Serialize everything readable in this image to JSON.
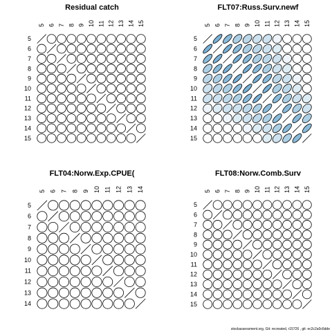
{
  "chart_data": [
    {
      "type": "corrplot",
      "title": "Residual catch",
      "color": "#5b9ec9",
      "categories": [
        "5",
        "6",
        "7",
        "8",
        "9",
        "10",
        "11",
        "12",
        "13",
        "14",
        "15"
      ],
      "values": [
        [
          1,
          0,
          0,
          0,
          0,
          0,
          0,
          0,
          0,
          0,
          0
        ],
        [
          0,
          1,
          0,
          0,
          0,
          0,
          0,
          0,
          0,
          0,
          0
        ],
        [
          0,
          0,
          1,
          0,
          0,
          0,
          0,
          0,
          0,
          0,
          0
        ],
        [
          0,
          0,
          0,
          1,
          0,
          0,
          0,
          0,
          0,
          0,
          0
        ],
        [
          0,
          0,
          0,
          0,
          1,
          0,
          0,
          0,
          0,
          0,
          0
        ],
        [
          0,
          0,
          0,
          0,
          0,
          1,
          0,
          0,
          0,
          0,
          0
        ],
        [
          0,
          0,
          0,
          0,
          0,
          0,
          1,
          0,
          0,
          0,
          0
        ],
        [
          0,
          0,
          0,
          0,
          0,
          0,
          0,
          1,
          0,
          0,
          0
        ],
        [
          0,
          0,
          0,
          0,
          0,
          0,
          0,
          0,
          1,
          0,
          0
        ],
        [
          0,
          0,
          0,
          0,
          0,
          0,
          0,
          0,
          0,
          1,
          0
        ],
        [
          0,
          0,
          0,
          0,
          0,
          0,
          0,
          0,
          0,
          0,
          1
        ]
      ]
    },
    {
      "type": "corrplot",
      "title": "FLT07:Russ.Surv.newf",
      "color": "#5b9ec9",
      "categories": [
        "5",
        "6",
        "7",
        "8",
        "9",
        "10",
        "11",
        "12",
        "13",
        "14",
        "15"
      ],
      "values": [
        [
          1,
          0.8,
          0.7,
          0.5,
          0.4,
          0.3,
          0.3,
          0.1,
          0,
          0,
          0
        ],
        [
          0.8,
          1,
          0.8,
          0.7,
          0.5,
          0.4,
          0.3,
          0.2,
          0,
          0,
          0
        ],
        [
          0.7,
          0.8,
          1,
          0.8,
          0.7,
          0.5,
          0.4,
          0.3,
          0.1,
          0,
          0
        ],
        [
          0.5,
          0.7,
          0.8,
          1,
          0.8,
          0.7,
          0.5,
          0.3,
          0.2,
          0,
          0
        ],
        [
          0.4,
          0.5,
          0.7,
          0.8,
          1,
          0.8,
          0.7,
          0.4,
          0.3,
          0.1,
          0
        ],
        [
          0.3,
          0.4,
          0.5,
          0.7,
          0.8,
          1,
          0.8,
          0.5,
          0.4,
          0.2,
          0
        ],
        [
          0.3,
          0.3,
          0.4,
          0.5,
          0.7,
          0.8,
          1,
          0.7,
          0.5,
          0.3,
          0.2
        ],
        [
          0.1,
          0.2,
          0.3,
          0.3,
          0.4,
          0.5,
          0.7,
          1,
          0.7,
          0.5,
          0.3
        ],
        [
          0,
          0,
          0.1,
          0.2,
          0.3,
          0.4,
          0.5,
          0.7,
          1,
          0.7,
          0.5
        ],
        [
          0,
          0,
          0,
          0,
          0.1,
          0.2,
          0.3,
          0.5,
          0.7,
          1,
          0.7
        ],
        [
          0,
          0,
          0,
          0,
          0,
          0,
          0.2,
          0.3,
          0.5,
          0.7,
          1
        ]
      ]
    },
    {
      "type": "corrplot",
      "title": "FLT04:Norw.Exp.CPUE(",
      "color": "#5b9ec9",
      "categories": [
        "5",
        "6",
        "7",
        "8",
        "9",
        "10",
        "11",
        "12",
        "13",
        "14"
      ],
      "values": [
        [
          1,
          0,
          0,
          0,
          0,
          0,
          0,
          0,
          0,
          0
        ],
        [
          0,
          1,
          0,
          0,
          0,
          0,
          0,
          0,
          0,
          0
        ],
        [
          0,
          0,
          1,
          0,
          0,
          0,
          0,
          0,
          0,
          0
        ],
        [
          0,
          0,
          0,
          1,
          0,
          0,
          0,
          0,
          0,
          0
        ],
        [
          0,
          0,
          0,
          0,
          1,
          0,
          0,
          0,
          0,
          0
        ],
        [
          0,
          0,
          0,
          0,
          0,
          1,
          0,
          0,
          0,
          0
        ],
        [
          0,
          0,
          0,
          0,
          0,
          0,
          1,
          0,
          0,
          0
        ],
        [
          0,
          0,
          0,
          0,
          0,
          0,
          0,
          1,
          0,
          0
        ],
        [
          0,
          0,
          0,
          0,
          0,
          0,
          0,
          0,
          1,
          0
        ],
        [
          0,
          0,
          0,
          0,
          0,
          0,
          0,
          0,
          0,
          1
        ]
      ]
    },
    {
      "type": "corrplot",
      "title": "FLT08:Norw.Comb.Surv",
      "color": "#5b9ec9",
      "categories": [
        "5",
        "6",
        "7",
        "8",
        "9",
        "10",
        "11",
        "12",
        "13",
        "14",
        "15"
      ],
      "values": [
        [
          1,
          0,
          0,
          0,
          0,
          0,
          0,
          0,
          0,
          0,
          0
        ],
        [
          0,
          1,
          0,
          0,
          0,
          0,
          0,
          0,
          0,
          0,
          0
        ],
        [
          0,
          0,
          1,
          0,
          0,
          0,
          0,
          0,
          0,
          0,
          0
        ],
        [
          0,
          0,
          0,
          1,
          0,
          0,
          0,
          0,
          0,
          0,
          0
        ],
        [
          0,
          0,
          0,
          0,
          1,
          0,
          0,
          0,
          0,
          0,
          0
        ],
        [
          0,
          0,
          0,
          0,
          0,
          1,
          0,
          0,
          0,
          0,
          0
        ],
        [
          0,
          0,
          0,
          0,
          0,
          0,
          1,
          0,
          0,
          0,
          0
        ],
        [
          0,
          0,
          0,
          0,
          0,
          0,
          0,
          1,
          0,
          0,
          0
        ],
        [
          0,
          0,
          0,
          0,
          0,
          0,
          0,
          0,
          1,
          0,
          0
        ],
        [
          0,
          0,
          0,
          0,
          0,
          0,
          0,
          0,
          0,
          1,
          0
        ],
        [
          0,
          0,
          0,
          0,
          0,
          0,
          0,
          0,
          0,
          0,
          1
        ]
      ]
    }
  ],
  "footer": "stockassessment.org, Git: recreated, r15726 , git: ec2c2a0c6dde"
}
